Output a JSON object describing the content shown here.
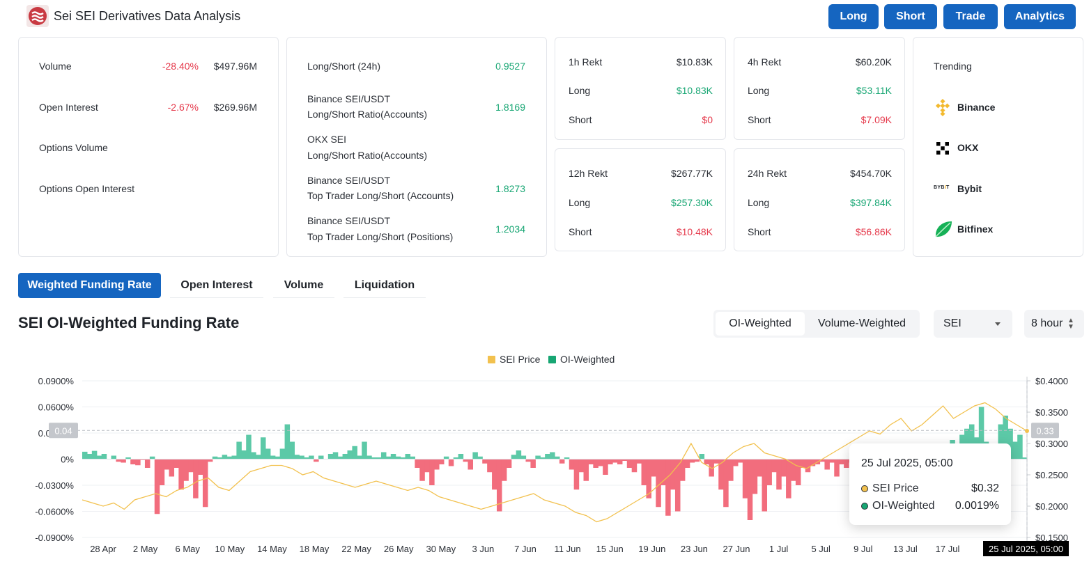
{
  "header": {
    "title": "Sei SEI Derivatives Data Analysis",
    "buttons": [
      "Long",
      "Short",
      "Trade",
      "Analytics"
    ]
  },
  "overview": {
    "volume_label": "Volume",
    "volume_change": "-28.40%",
    "volume_value": "$497.96M",
    "oi_label": "Open Interest",
    "oi_change": "-2.67%",
    "oi_value": "$269.96M",
    "options_volume_label": "Options Volume",
    "options_oi_label": "Options Open Interest"
  },
  "ratios": {
    "items": [
      {
        "line1": "Long/Short (24h)",
        "line2": "",
        "value": "0.9527"
      },
      {
        "line1": "Binance SEI/USDT",
        "line2": "Long/Short Ratio(Accounts)",
        "value": "1.8169"
      },
      {
        "line1": "OKX SEI",
        "line2": "Long/Short Ratio(Accounts)",
        "value": ""
      },
      {
        "line1": "Binance SEI/USDT",
        "line2": "Top Trader Long/Short (Accounts)",
        "value": "1.8273"
      },
      {
        "line1": "Binance SEI/USDT",
        "line2": "Top Trader Long/Short (Positions)",
        "value": "1.2034"
      }
    ]
  },
  "rekt": [
    {
      "title": "1h Rekt",
      "total": "$10.83K",
      "long_label": "Long",
      "long": "$10.83K",
      "short_label": "Short",
      "short": "$0"
    },
    {
      "title": "4h Rekt",
      "total": "$60.20K",
      "long_label": "Long",
      "long": "$53.11K",
      "short_label": "Short",
      "short": "$7.09K"
    },
    {
      "title": "12h Rekt",
      "total": "$267.77K",
      "long_label": "Long",
      "long": "$257.30K",
      "short_label": "Short",
      "short": "$10.48K"
    },
    {
      "title": "24h Rekt",
      "total": "$454.70K",
      "long_label": "Long",
      "long": "$397.84K",
      "short_label": "Short",
      "short": "$56.86K"
    }
  ],
  "trending": {
    "title": "Trending",
    "exchanges": [
      "Binance",
      "OKX",
      "Bybit",
      "Bitfinex"
    ],
    "icons": [
      "binance-icon",
      "okx-icon",
      "bybit-icon",
      "bitfinex-icon"
    ]
  },
  "tabs": [
    "Weighted Funding Rate",
    "Open Interest",
    "Volume",
    "Liquidation"
  ],
  "chart_header": {
    "title": "SEI OI-Weighted Funding Rate",
    "segments": [
      "OI-Weighted",
      "Volume-Weighted"
    ],
    "symbol": "SEI",
    "interval": "8 hour"
  },
  "tooltip": {
    "time": "25 Jul 2025, 05:00",
    "price_label": "SEI Price",
    "price_value": "$0.32",
    "rate_label": "OI-Weighted",
    "rate_value": "0.0019%"
  },
  "crosshair": {
    "x_label": "25 Jul 2025, 05:00",
    "y_left": "0.04",
    "y_right": "0.33"
  },
  "colors": {
    "accent": "#1565c0",
    "positive": "#17a673",
    "negative": "#e5394b",
    "price_line": "#f2c14e",
    "pos_fill": "#5cc9a7",
    "neg_fill": "#f26d7d"
  },
  "chart_data": {
    "type": "area",
    "legend": [
      "SEI Price",
      "OI-Weighted"
    ],
    "legend_position": "top-center",
    "x_ticks": [
      "28 Apr",
      "2 May",
      "6 May",
      "10 May",
      "14 May",
      "18 May",
      "22 May",
      "26 May",
      "30 May",
      "3 Jun",
      "7 Jun",
      "11 Jun",
      "15 Jun",
      "19 Jun",
      "23 Jun",
      "27 Jun",
      "1 Jul",
      "5 Jul",
      "9 Jul",
      "13 Jul",
      "17 Jul",
      "21"
    ],
    "y_left_ticks": [
      "0.0900%",
      "0.0600%",
      "0.0300%",
      "0%",
      "-0.0300%",
      "-0.0600%",
      "-0.0900%"
    ],
    "y_right_ticks": [
      "$0.4000",
      "$0.3500",
      "$0.3000",
      "$0.2500",
      "$0.2000",
      "$0.1500"
    ],
    "y_left_range": [
      -0.09,
      0.09
    ],
    "y_right_range": [
      0.15,
      0.4
    ],
    "series": [
      {
        "name": "OI-Weighted",
        "unit": "%",
        "values": [
          0.0085,
          0.006,
          0.0095,
          0.004,
          0.006,
          0.0,
          0.004,
          -0.003,
          -0.004,
          0.002,
          -0.006,
          -0.007,
          -0.001,
          -0.01,
          0.003,
          -0.063,
          -0.03,
          -0.012,
          -0.02,
          -0.01,
          -0.035,
          -0.025,
          -0.015,
          -0.045,
          -0.018,
          -0.055,
          -0.003,
          0.003,
          0.002,
          0.005,
          0.003,
          0.004,
          0.02,
          0.01,
          0.028,
          0.008,
          0.005,
          0.025,
          0.012,
          0.004,
          0.003,
          0.012,
          0.04,
          0.02,
          0.005,
          0.004,
          0.002,
          0.004,
          -0.003,
          0.004,
          0.0,
          0.006,
          0.008,
          0.003,
          0.006,
          0.01,
          0.015,
          0.004,
          0.02,
          0.004,
          0.002,
          0.002,
          0.008,
          0.003,
          0.006,
          0.003,
          0.002,
          0.006,
          0.003,
          -0.01,
          -0.025,
          -0.015,
          -0.03,
          -0.012,
          -0.006,
          0.003,
          -0.008,
          0.002,
          0.006,
          -0.003,
          -0.012,
          0.008,
          0.003,
          -0.005,
          -0.015,
          -0.035,
          -0.06,
          -0.025,
          -0.01,
          0.005,
          0.01,
          0.004,
          -0.003,
          -0.01,
          0.004,
          0.002,
          0.006,
          0.008,
          0.003,
          -0.005,
          0.002,
          -0.012,
          -0.035,
          -0.015,
          -0.025,
          -0.006,
          -0.01,
          -0.008,
          -0.018,
          -0.006,
          -0.004,
          -0.006,
          -0.002,
          -0.01,
          -0.015,
          -0.005,
          -0.03,
          -0.045,
          -0.02,
          -0.055,
          -0.03,
          -0.065,
          -0.035,
          -0.06,
          -0.025,
          -0.01,
          -0.004,
          -0.003,
          0.006,
          -0.006,
          -0.02,
          -0.005,
          -0.035,
          -0.055,
          -0.025,
          -0.008,
          -0.004,
          -0.045,
          -0.07,
          -0.04,
          -0.02,
          -0.06,
          -0.03,
          -0.015,
          -0.035,
          -0.02,
          -0.045,
          -0.025,
          -0.03,
          -0.01,
          -0.015,
          -0.008,
          -0.006,
          -0.003,
          -0.012,
          -0.004,
          -0.02,
          -0.006,
          -0.01,
          -0.004,
          -0.02,
          -0.01,
          -0.006,
          -0.015,
          -0.004,
          -0.008,
          -0.003,
          -0.002,
          0.002,
          0.005,
          0.0,
          0.004,
          0.008,
          0.006,
          0.003,
          0.002,
          0.004,
          0.002,
          0.018,
          0.012,
          0.022,
          0.015,
          0.028,
          0.035,
          0.04,
          0.025,
          0.06,
          0.02,
          0.018,
          0.008,
          0.04,
          0.05,
          0.035,
          0.02,
          0.028,
          0.0019
        ]
      },
      {
        "name": "SEI Price",
        "unit": "$",
        "values": [
          0.21,
          0.205,
          0.2,
          0.205,
          0.195,
          0.21,
          0.215,
          0.22,
          0.215,
          0.225,
          0.23,
          0.24,
          0.245,
          0.23,
          0.225,
          0.24,
          0.255,
          0.26,
          0.265,
          0.265,
          0.26,
          0.25,
          0.255,
          0.245,
          0.24,
          0.235,
          0.23,
          0.235,
          0.24,
          0.235,
          0.23,
          0.225,
          0.23,
          0.225,
          0.215,
          0.21,
          0.205,
          0.2,
          0.195,
          0.2,
          0.205,
          0.21,
          0.215,
          0.22,
          0.21,
          0.205,
          0.2,
          0.19,
          0.185,
          0.175,
          0.18,
          0.19,
          0.2,
          0.21,
          0.22,
          0.235,
          0.25,
          0.27,
          0.3,
          0.27,
          0.26,
          0.27,
          0.285,
          0.295,
          0.3,
          0.285,
          0.28,
          0.275,
          0.265,
          0.26,
          0.27,
          0.28,
          0.29,
          0.3,
          0.31,
          0.32,
          0.315,
          0.33,
          0.34,
          0.32,
          0.33,
          0.345,
          0.36,
          0.34,
          0.35,
          0.36,
          0.365,
          0.355,
          0.34,
          0.33,
          0.32
        ]
      }
    ]
  }
}
